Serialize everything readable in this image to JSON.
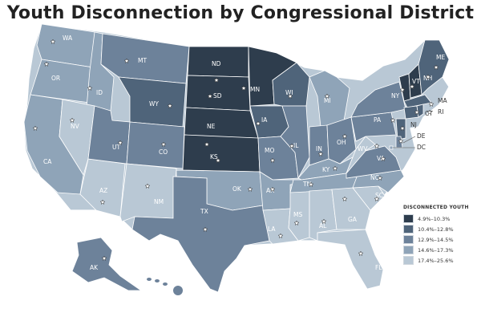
{
  "title": "Youth Disconnection by Congressional District",
  "legend": {
    "title": "DISCONNECTED YOUTH",
    "items": [
      {
        "label": "4.9%–10.3%",
        "color": "#2e3d4d"
      },
      {
        "label": "10.4%–12.8%",
        "color": "#4f647a"
      },
      {
        "label": "12.9%–14.5%",
        "color": "#6d829a"
      },
      {
        "label": "14.6%–17.3%",
        "color": "#8fa4b8"
      },
      {
        "label": "17.4%–25.6%",
        "color": "#b9c8d5"
      }
    ]
  },
  "states": [
    {
      "abbr": "WA",
      "cls": 3
    },
    {
      "abbr": "OR",
      "cls": 3
    },
    {
      "abbr": "CA",
      "cls": 3
    },
    {
      "abbr": "ID",
      "cls": 3
    },
    {
      "abbr": "NV",
      "cls": 4
    },
    {
      "abbr": "AZ",
      "cls": 4
    },
    {
      "abbr": "UT",
      "cls": 2
    },
    {
      "abbr": "MT",
      "cls": 2
    },
    {
      "abbr": "WY",
      "cls": 1
    },
    {
      "abbr": "CO",
      "cls": 2
    },
    {
      "abbr": "NM",
      "cls": 4
    },
    {
      "abbr": "ND",
      "cls": 0
    },
    {
      "abbr": "SD",
      "cls": 0
    },
    {
      "abbr": "NE",
      "cls": 0
    },
    {
      "abbr": "KS",
      "cls": 0
    },
    {
      "abbr": "OK",
      "cls": 3
    },
    {
      "abbr": "TX",
      "cls": 2
    },
    {
      "abbr": "MN",
      "cls": 0
    },
    {
      "abbr": "IA",
      "cls": 1
    },
    {
      "abbr": "MO",
      "cls": 2
    },
    {
      "abbr": "AR",
      "cls": 3
    },
    {
      "abbr": "LA",
      "cls": 4
    },
    {
      "abbr": "WI",
      "cls": 1
    },
    {
      "abbr": "IL",
      "cls": 2
    },
    {
      "abbr": "MS",
      "cls": 4
    },
    {
      "abbr": "MI",
      "cls": 3
    },
    {
      "abbr": "IN",
      "cls": 2
    },
    {
      "abbr": "OH",
      "cls": 2
    },
    {
      "abbr": "KY",
      "cls": 3
    },
    {
      "abbr": "TN",
      "cls": 3
    },
    {
      "abbr": "AL",
      "cls": 4
    },
    {
      "abbr": "GA",
      "cls": 4
    },
    {
      "abbr": "FL",
      "cls": 4
    },
    {
      "abbr": "SC",
      "cls": 4
    },
    {
      "abbr": "NC",
      "cls": 3
    },
    {
      "abbr": "VA",
      "cls": 2
    },
    {
      "abbr": "WV",
      "cls": 4
    },
    {
      "abbr": "PA",
      "cls": 2
    },
    {
      "abbr": "NY",
      "cls": 2
    },
    {
      "abbr": "VT",
      "cls": 0
    },
    {
      "abbr": "NH",
      "cls": 0
    },
    {
      "abbr": "ME",
      "cls": 1
    },
    {
      "abbr": "MA",
      "cls": 1
    },
    {
      "abbr": "CT",
      "cls": 1
    },
    {
      "abbr": "RI",
      "cls": 1
    },
    {
      "abbr": "NJ",
      "cls": 1
    },
    {
      "abbr": "DE",
      "cls": 2
    },
    {
      "abbr": "DC",
      "cls": 3
    },
    {
      "abbr": "AK",
      "cls": 2
    }
  ]
}
